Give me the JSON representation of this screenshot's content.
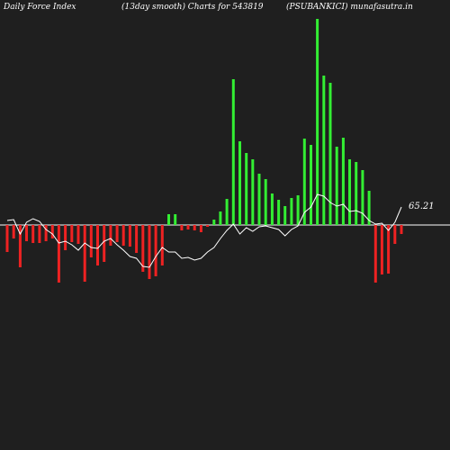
{
  "header": {
    "left": "Daily Force  Index",
    "middle": "(13day smooth) Charts for 543819",
    "right": "(PSUBANKICI) munafasutra.in"
  },
  "colors": {
    "background": "#1f1f1f",
    "positive": "#33ee33",
    "negative": "#ee2222",
    "line": "#ffffff",
    "zero": "#ffffff"
  },
  "chart_data": {
    "type": "bar",
    "title": "Daily Force  Index",
    "value_label": "65.21",
    "zero_line": true,
    "bars": [
      -30,
      -15,
      -47,
      -18,
      -20,
      -20,
      -18,
      -15,
      -64,
      -28,
      -19,
      -21,
      -63,
      -36,
      -45,
      -41,
      -23,
      -19,
      -23,
      -24,
      -31,
      -52,
      -60,
      -57,
      -45,
      12,
      12,
      -6,
      -5,
      -6,
      -8,
      -2,
      6,
      15,
      29,
      162,
      93,
      80,
      73,
      57,
      51,
      35,
      28,
      21,
      30,
      33,
      96,
      89,
      229,
      166,
      158,
      87,
      97,
      73,
      70,
      61,
      38,
      -64,
      -55,
      -54,
      -21,
      -10
    ],
    "line": [
      5,
      6,
      -10,
      3,
      7,
      4,
      -5,
      -10,
      -20,
      -18,
      -22,
      -28,
      -20,
      -25,
      -26,
      -18,
      -15,
      -22,
      -28,
      -35,
      -37,
      -46,
      -47,
      -35,
      -25,
      -30,
      -30,
      -37,
      -36,
      -39,
      -37,
      -30,
      -25,
      -15,
      -6,
      1,
      -10,
      -3,
      -7,
      -2,
      -1,
      -3,
      -5,
      -12,
      -5,
      -1,
      14,
      20,
      34,
      32,
      25,
      21,
      23,
      15,
      16,
      13,
      5,
      1,
      2,
      -6,
      3,
      20
    ]
  }
}
